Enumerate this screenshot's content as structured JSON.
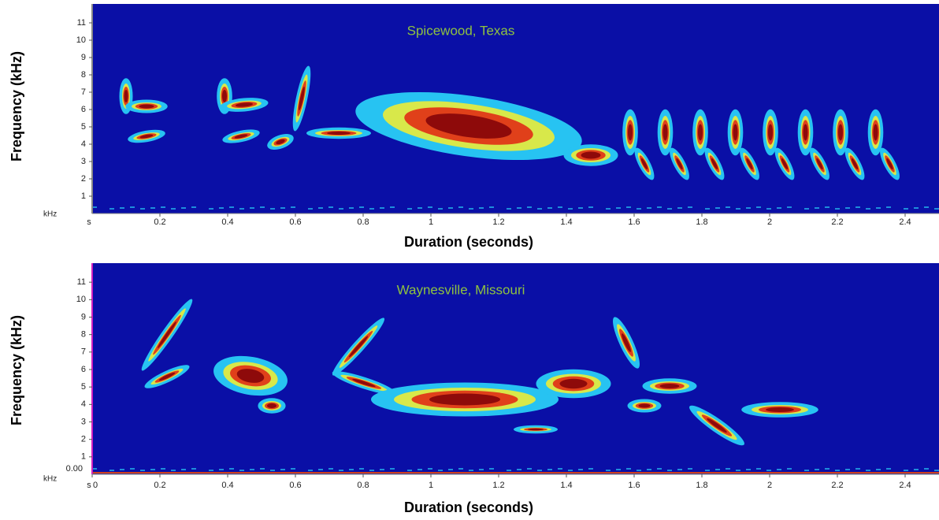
{
  "chart_data": [
    {
      "type": "spectrogram",
      "title": "Spicewood, Texas",
      "x_label": "Duration (seconds)",
      "y_label": "Frequency (kHz)",
      "y_unit": "kHz",
      "x_unit": "s",
      "xlim": [
        0,
        2.5
      ],
      "ylim": [
        0,
        12
      ],
      "xticks": [
        0.2,
        0.4,
        0.6,
        0.8,
        1,
        1.2,
        1.4,
        1.6,
        1.8,
        2,
        2.2,
        2.4
      ],
      "yticks": [
        1,
        2,
        3,
        4,
        5,
        6,
        7,
        8,
        9,
        10,
        11
      ]
    },
    {
      "type": "spectrogram",
      "title": "Waynesville, Missouri",
      "x_label": "Duration (seconds)",
      "y_label": "Frequency (kHz)",
      "y_unit": "kHz",
      "x_unit": "s",
      "y_readout": "0.00",
      "xlim": [
        0,
        2.5
      ],
      "ylim": [
        0,
        12
      ],
      "xticks": [
        0,
        0.2,
        0.4,
        0.6,
        0.8,
        1,
        1.2,
        1.4,
        1.6,
        1.8,
        2,
        2.2,
        2.4
      ],
      "yticks": [
        1,
        2,
        3,
        4,
        5,
        6,
        7,
        8,
        9,
        10,
        11
      ]
    }
  ]
}
